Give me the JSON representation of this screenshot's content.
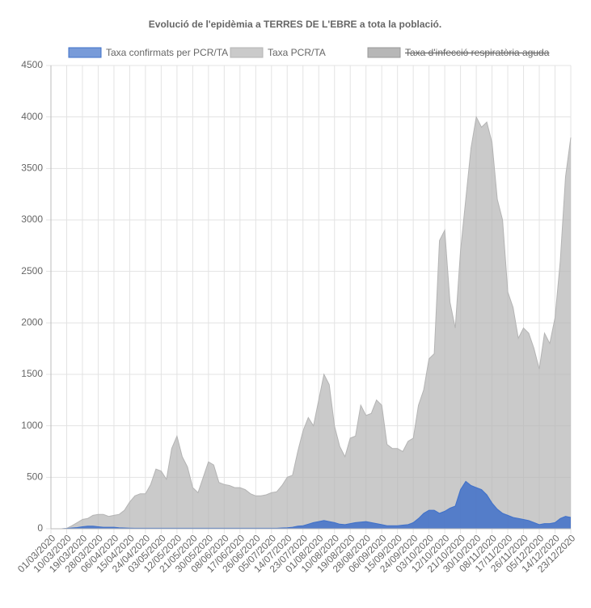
{
  "chart_data": {
    "type": "area",
    "title": "Evolució de l'epidèmia a TERRES DE L'EBRE a tota la població.",
    "categories": [
      "01/03/2020",
      null,
      null,
      "10/03/2020",
      null,
      null,
      "19/03/2020",
      null,
      null,
      "28/03/2020",
      null,
      null,
      "06/04/2020",
      null,
      null,
      "15/04/2020",
      null,
      null,
      "24/04/2020",
      null,
      null,
      "03/05/2020",
      null,
      null,
      "12/05/2020",
      null,
      null,
      "21/05/2020",
      null,
      null,
      "30/05/2020",
      null,
      null,
      "08/06/2020",
      null,
      null,
      "17/06/2020",
      null,
      null,
      "26/06/2020",
      null,
      null,
      "05/07/2020",
      null,
      null,
      "14/07/2020",
      null,
      null,
      "23/07/2020",
      null,
      null,
      "01/08/2020",
      null,
      null,
      "10/08/2020",
      null,
      null,
      "19/08/2020",
      null,
      null,
      "28/08/2020",
      null,
      null,
      "06/09/2020",
      null,
      null,
      "15/09/2020",
      null,
      null,
      "24/09/2020",
      null,
      null,
      "03/10/2020",
      null,
      null,
      "12/10/2020",
      null,
      null,
      "21/10/2020",
      null,
      null,
      "30/10/2020",
      null,
      null,
      "08/11/2020",
      null,
      null,
      "17/11/2020",
      null,
      null,
      "26/11/2020",
      null,
      null,
      "05/12/2020",
      null,
      null,
      "14/12/2020",
      null,
      null,
      "23/12/2020"
    ],
    "series": [
      {
        "name": "Taxa confirmats per PCR/TA",
        "color": "#3f70c9",
        "values": [
          0,
          0,
          0,
          3,
          8,
          12,
          20,
          25,
          25,
          20,
          15,
          15,
          15,
          10,
          8,
          6,
          5,
          5,
          5,
          5,
          5,
          5,
          5,
          5,
          5,
          5,
          5,
          5,
          5,
          5,
          5,
          5,
          5,
          5,
          5,
          5,
          5,
          5,
          5,
          5,
          5,
          5,
          5,
          5,
          8,
          10,
          15,
          25,
          30,
          45,
          60,
          70,
          80,
          70,
          60,
          45,
          40,
          50,
          60,
          65,
          70,
          60,
          50,
          40,
          30,
          30,
          30,
          35,
          40,
          60,
          100,
          150,
          180,
          180,
          150,
          170,
          200,
          220,
          380,
          460,
          420,
          400,
          380,
          330,
          250,
          190,
          150,
          130,
          110,
          100,
          90,
          80,
          60,
          40,
          50,
          50,
          60,
          100,
          120,
          110
        ]
      },
      {
        "name": "Taxa PCR/TA",
        "color": "#b4b4b4",
        "values": [
          0,
          0,
          0,
          5,
          30,
          60,
          90,
          100,
          130,
          140,
          140,
          120,
          130,
          140,
          180,
          260,
          320,
          340,
          340,
          430,
          580,
          560,
          480,
          780,
          900,
          700,
          600,
          400,
          350,
          500,
          650,
          620,
          450,
          430,
          420,
          400,
          400,
          380,
          340,
          320,
          320,
          330,
          350,
          360,
          420,
          500,
          520,
          750,
          950,
          1080,
          1000,
          1250,
          1500,
          1400,
          1000,
          800,
          700,
          880,
          900,
          1200,
          1100,
          1120,
          1250,
          1200,
          820,
          780,
          780,
          750,
          850,
          880,
          1200,
          1350,
          1650,
          1700,
          2800,
          2900,
          2200,
          1950,
          2700,
          3200,
          3700,
          4000,
          3900,
          3950,
          3750,
          3200,
          3000,
          2300,
          2150,
          1850,
          1950,
          1900,
          1750,
          1550,
          1900,
          1800,
          2050,
          2600,
          3420,
          3800
        ]
      },
      {
        "name": "Taxa d'infecció respiratòria aguda",
        "color": "#999999",
        "hidden": true,
        "values": [
          null,
          null,
          null,
          null,
          null,
          null,
          null,
          null,
          null,
          null,
          null,
          null,
          null,
          null,
          null,
          null,
          null,
          null,
          null,
          null,
          null,
          null,
          null,
          null,
          null,
          null,
          null,
          null,
          null,
          null,
          null,
          null,
          null,
          null,
          null,
          null,
          null,
          null,
          null,
          null,
          null,
          null,
          null,
          null,
          null,
          null,
          null,
          null,
          null,
          null,
          null,
          null,
          null,
          null,
          null,
          null,
          null,
          null,
          null,
          null,
          null,
          null,
          null,
          null,
          null,
          null,
          null,
          null,
          null,
          null,
          null,
          null,
          null,
          null,
          null,
          null,
          null,
          null,
          null,
          null,
          null,
          null,
          null,
          null,
          null,
          null,
          null,
          null,
          null,
          null,
          null,
          null,
          null,
          null,
          null,
          null,
          null,
          null,
          null,
          null
        ]
      }
    ],
    "ylim": [
      0,
      4500
    ],
    "yticks": [
      0,
      500,
      1000,
      1500,
      2000,
      2500,
      3000,
      3500,
      4000,
      4500
    ],
    "grid": true
  }
}
